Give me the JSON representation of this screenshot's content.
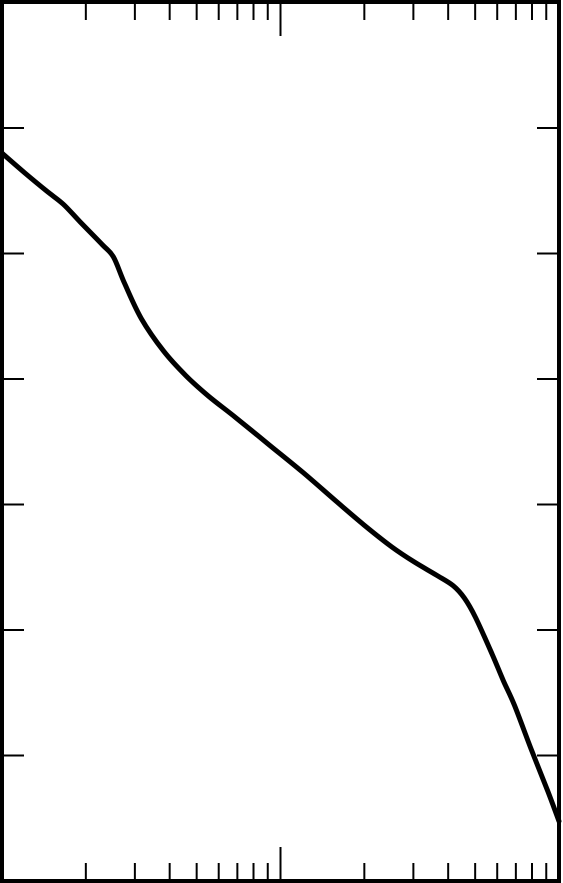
{
  "chart_data": {
    "type": "line",
    "title": "",
    "xlabel": "",
    "ylabel": "",
    "x_scale": "log",
    "x_decades": 2,
    "y_major_ticks": 6,
    "grid": false,
    "legend": "none",
    "series": [
      {
        "values": [
          [
            0.0,
            0.828
          ],
          [
            0.04,
            0.806
          ],
          [
            0.08,
            0.785
          ],
          [
            0.11,
            0.77
          ],
          [
            0.14,
            0.75
          ],
          [
            0.18,
            0.724
          ],
          [
            0.2,
            0.71
          ],
          [
            0.22,
            0.68
          ],
          [
            0.25,
            0.64
          ],
          [
            0.29,
            0.603
          ],
          [
            0.33,
            0.575
          ],
          [
            0.37,
            0.552
          ],
          [
            0.42,
            0.527
          ],
          [
            0.48,
            0.496
          ],
          [
            0.54,
            0.465
          ],
          [
            0.6,
            0.432
          ],
          [
            0.65,
            0.405
          ],
          [
            0.7,
            0.38
          ],
          [
            0.74,
            0.363
          ],
          [
            0.78,
            0.348
          ],
          [
            0.81,
            0.336
          ],
          [
            0.83,
            0.322
          ],
          [
            0.85,
            0.3
          ],
          [
            0.88,
            0.258
          ],
          [
            0.9,
            0.228
          ],
          [
            0.92,
            0.2
          ],
          [
            0.95,
            0.15
          ],
          [
            0.98,
            0.102
          ],
          [
            1.0,
            0.068
          ]
        ]
      }
    ],
    "colors": {
      "line": "#000000",
      "frame": "#000000",
      "background": "#ffffff"
    }
  }
}
